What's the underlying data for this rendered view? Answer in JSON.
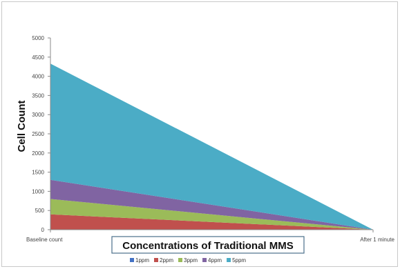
{
  "chart_data": {
    "type": "area",
    "stacked": true,
    "categories": [
      "Baseline count",
      "After 1 minute"
    ],
    "series": [
      {
        "name": "1ppm",
        "color": "#4472C4",
        "values": [
          0,
          0
        ]
      },
      {
        "name": "2ppm",
        "color": "#C0504D",
        "values": [
          400,
          0
        ]
      },
      {
        "name": "3ppm",
        "color": "#9BBB59",
        "values": [
          400,
          0
        ]
      },
      {
        "name": "4ppm",
        "color": "#8064A2",
        "values": [
          500,
          0
        ]
      },
      {
        "name": "5ppm",
        "color": "#4BACC6",
        "values": [
          3030,
          0
        ]
      }
    ],
    "xlabel": "Concentrations of Traditional MMS",
    "ylabel": "Cell Count",
    "ylim": [
      0,
      5000
    ],
    "yticks": [
      0,
      500,
      1000,
      1500,
      2000,
      2500,
      3000,
      3500,
      4000,
      4500,
      5000
    ],
    "grid": false,
    "legend_position": "bottom"
  }
}
